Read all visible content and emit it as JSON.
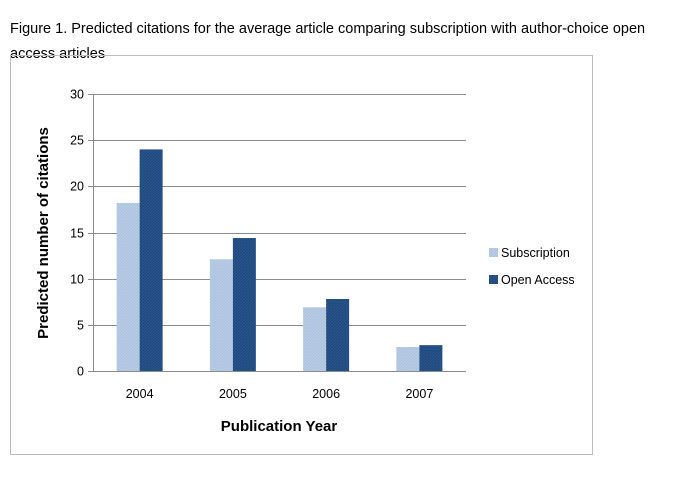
{
  "caption": "Figure 1. Predicted citations for the average article comparing subscription with author-choice open access articles",
  "chart_data": {
    "type": "bar",
    "categories": [
      "2004",
      "2005",
      "2006",
      "2007"
    ],
    "series": [
      {
        "name": "Subscription",
        "values": [
          18.2,
          12.1,
          6.9,
          2.6
        ],
        "color": "#b8cce4"
      },
      {
        "name": "Open Access",
        "values": [
          24.0,
          14.4,
          7.8,
          2.8
        ],
        "color": "#1f497d"
      }
    ],
    "xlabel": "Publication Year",
    "ylabel": "Predicted number of citations",
    "ylim": [
      0,
      30
    ],
    "yticks": [
      0,
      5,
      10,
      15,
      20,
      25,
      30
    ],
    "grid": true,
    "legend": "right"
  }
}
